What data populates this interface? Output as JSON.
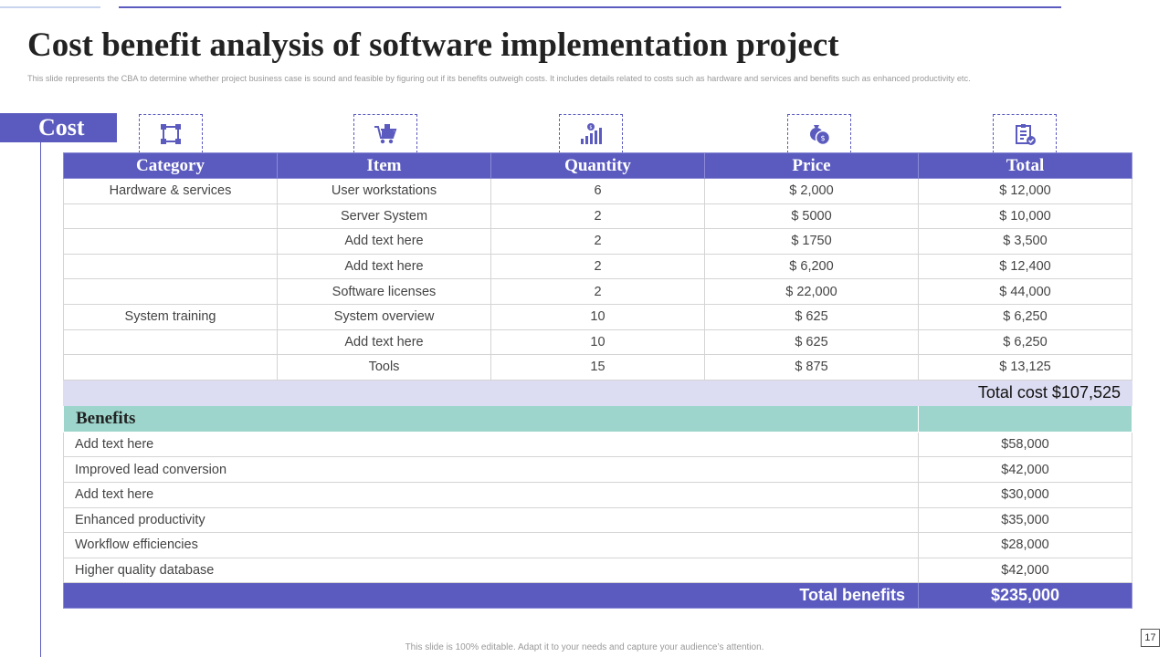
{
  "title": "Cost benefit analysis of software implementation project",
  "subtitle": "This slide represents the CBA to determine whether project business case is sound and feasible by figuring out if its benefits outweigh costs. It includes details related to costs such as hardware and services and benefits such as enhanced productivity etc.",
  "cost_label": "Cost",
  "icons": [
    "network-icon",
    "cart-icon",
    "growth-chart-icon",
    "money-bag-icon",
    "clipboard-check-icon"
  ],
  "table": {
    "headers": [
      "Category",
      "Item",
      "Quantity",
      "Price",
      "Total"
    ],
    "rows": [
      [
        "Hardware & services",
        "User workstations",
        "6",
        "$ 2,000",
        "$ 12,000"
      ],
      [
        "",
        "Server System",
        "2",
        "$ 5000",
        "$ 10,000"
      ],
      [
        "",
        "Add text here",
        "2",
        "$ 1750",
        "$ 3,500"
      ],
      [
        "",
        "Add text here",
        "2",
        "$ 6,200",
        "$ 12,400"
      ],
      [
        "",
        "Software licenses",
        "2",
        "$ 22,000",
        "$ 44,000"
      ],
      [
        "System training",
        "System overview",
        "10",
        "$ 625",
        "$ 6,250"
      ],
      [
        "",
        "Add text here",
        "10",
        "$ 625",
        "$ 6,250"
      ],
      [
        "",
        "Tools",
        "15",
        "$ 875",
        "$ 13,125"
      ]
    ],
    "total_cost": "Total cost $107,525"
  },
  "benefits": {
    "heading": "Benefits",
    "rows": [
      [
        "Add text here",
        "$58,000"
      ],
      [
        "Improved lead conversion",
        "$42,000"
      ],
      [
        "Add text here",
        "$30,000"
      ],
      [
        "Enhanced productivity",
        "$35,000"
      ],
      [
        "Workflow efficiencies",
        "$28,000"
      ],
      [
        "Higher quality database",
        "$42,000"
      ]
    ],
    "total_label": "Total benefits",
    "total_value": "$235,000"
  },
  "footer": "This slide is 100% editable. Adapt it to your needs and capture your audience’s attention.",
  "page_number": "17",
  "colors": {
    "accent": "#5b5bbf",
    "benefit_header": "#9dd5cc",
    "total_cost_bg": "#dcdcf2"
  }
}
